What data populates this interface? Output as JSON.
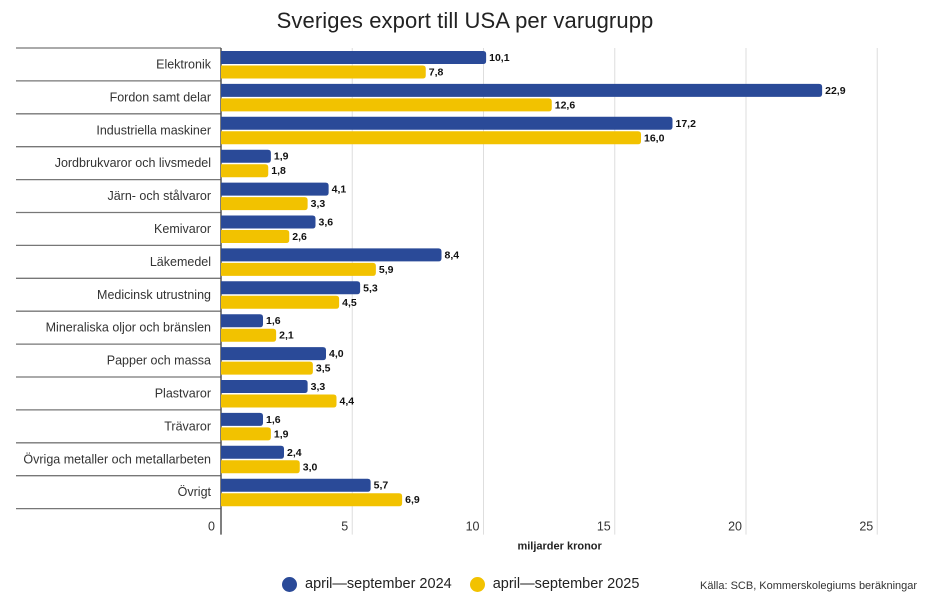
{
  "chart_data": {
    "type": "bar",
    "orientation": "horizontal",
    "title": "Sveriges export till USA per varugrupp",
    "xlabel": "miljarder kronor",
    "ylabel": "",
    "xlim": [
      0,
      27
    ],
    "xticks": [
      0,
      5,
      10,
      15,
      20,
      25
    ],
    "xtick_labels": [
      "0",
      "5",
      "10",
      "15",
      "20",
      "25"
    ],
    "grid": true,
    "legend_position": "bottom",
    "categories": [
      "Elektronik",
      "Fordon samt delar",
      "Industriella maskiner",
      "Jordbrukvaror och livsmedel",
      "Järn- och stålvaror",
      "Kemivaror",
      "Läkemedel",
      "Medicinsk utrustning",
      "Mineraliska oljor och bränslen",
      "Papper och massa",
      "Plastvaror",
      "Trävaror",
      "Övriga metaller och metallarbeten",
      "Övrigt"
    ],
    "series": [
      {
        "name": "april—september 2024",
        "color": "#2a4a98",
        "values": [
          10.1,
          22.9,
          17.2,
          1.9,
          4.1,
          3.6,
          8.4,
          5.3,
          1.6,
          4.0,
          3.3,
          1.6,
          2.4,
          5.7
        ],
        "labels": [
          "10,1",
          "22,9",
          "17,2",
          "1,9",
          "4,1",
          "3,6",
          "8,4",
          "5,3",
          "1,6",
          "4,0",
          "3,3",
          "1,6",
          "2,4",
          "5,7"
        ]
      },
      {
        "name": "april—september 2025",
        "color": "#f2c200",
        "values": [
          7.8,
          12.6,
          16.0,
          1.8,
          3.3,
          2.6,
          5.9,
          4.5,
          2.1,
          3.5,
          4.4,
          1.9,
          3.0,
          6.9
        ],
        "labels": [
          "7,8",
          "12,6",
          "16,0",
          "1,8",
          "3,3",
          "2,6",
          "5,9",
          "4,5",
          "2,1",
          "3,5",
          "4,4",
          "1,9",
          "3,0",
          "6,9"
        ]
      }
    ],
    "source": "Källa: SCB, Kommerskolegiums beräkningar"
  },
  "legend": {
    "items": [
      {
        "label": "april—september 2024",
        "color": "#2a4a98"
      },
      {
        "label": "april—september 2025",
        "color": "#f2c200"
      }
    ]
  }
}
